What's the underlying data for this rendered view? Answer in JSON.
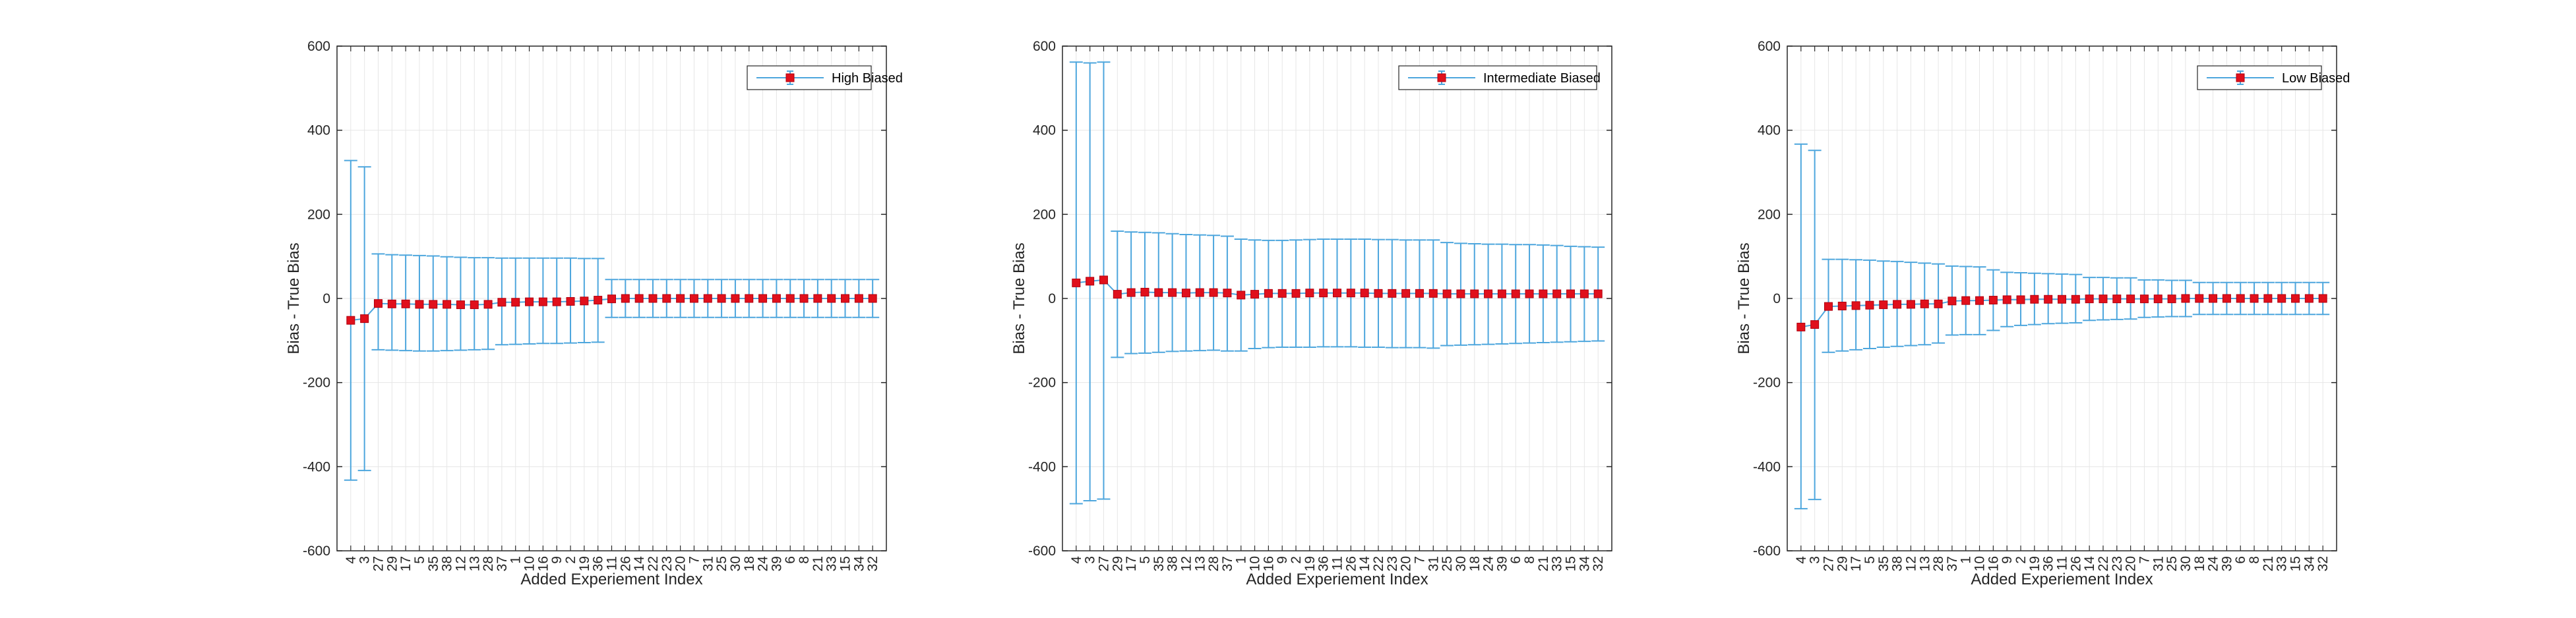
{
  "colors": {
    "error_bar": "#4DA6DD",
    "marker": "#E0101C",
    "marker_edge": "#B0000E",
    "axis": "#262626",
    "grid": "#E6E6E6"
  },
  "chart_data": [
    {
      "type": "errorbar",
      "legend": "High Biased",
      "legend_position": "top-right",
      "xlabel": "Added Experiement Index",
      "ylabel": "Bias - True Bias",
      "ylim": [
        -600,
        600
      ],
      "yticks": [
        -600,
        -400,
        -200,
        0,
        200,
        400,
        600
      ],
      "grid": true,
      "categories": [
        "4",
        "3",
        "27",
        "29",
        "17",
        "5",
        "35",
        "38",
        "12",
        "13",
        "28",
        "37",
        "1",
        "10",
        "16",
        "9",
        "2",
        "19",
        "36",
        "11",
        "26",
        "14",
        "22",
        "23",
        "20",
        "7",
        "31",
        "25",
        "30",
        "18",
        "24",
        "39",
        "6",
        "8",
        "21",
        "33",
        "15",
        "34",
        "32"
      ],
      "values": [
        -52,
        -48,
        -12,
        -13,
        -13,
        -14,
        -14,
        -14,
        -15,
        -15,
        -14,
        -9,
        -9,
        -8,
        -8,
        -8,
        -7,
        -6,
        -4,
        -1,
        0,
        0,
        0,
        0,
        0,
        0,
        0,
        0,
        0,
        0,
        0,
        0,
        0,
        0,
        0,
        0,
        0,
        0,
        0
      ],
      "upper": [
        328,
        313,
        106,
        104,
        103,
        102,
        101,
        99,
        98,
        97,
        97,
        96,
        96,
        96,
        96,
        96,
        96,
        95,
        95,
        45,
        45,
        45,
        45,
        45,
        45,
        45,
        45,
        45,
        45,
        45,
        45,
        45,
        45,
        45,
        45,
        45,
        45,
        45,
        45
      ],
      "lower": [
        -432,
        -409,
        -122,
        -123,
        -124,
        -125,
        -125,
        -124,
        -123,
        -122,
        -121,
        -110,
        -109,
        -108,
        -107,
        -107,
        -106,
        -105,
        -104,
        -45,
        -45,
        -45,
        -45,
        -45,
        -45,
        -45,
        -45,
        -45,
        -45,
        -45,
        -45,
        -45,
        -45,
        -45,
        -45,
        -45,
        -45,
        -45,
        -45
      ]
    },
    {
      "type": "errorbar",
      "legend": "Intermediate Biased",
      "legend_position": "top-right",
      "xlabel": "Added Experiement Index",
      "ylabel": "Bias - True Bias",
      "ylim": [
        -600,
        600
      ],
      "yticks": [
        -600,
        -400,
        -200,
        0,
        200,
        400,
        600
      ],
      "grid": true,
      "categories": [
        "4",
        "3",
        "27",
        "29",
        "17",
        "5",
        "35",
        "38",
        "12",
        "13",
        "28",
        "37",
        "1",
        "10",
        "16",
        "9",
        "2",
        "19",
        "36",
        "11",
        "26",
        "14",
        "22",
        "23",
        "20",
        "7",
        "31",
        "25",
        "30",
        "18",
        "24",
        "39",
        "6",
        "8",
        "21",
        "33",
        "15",
        "34",
        "32"
      ],
      "values": [
        37,
        41,
        44,
        10,
        14,
        15,
        14,
        14,
        13,
        14,
        14,
        13,
        8,
        10,
        12,
        12,
        12,
        13,
        13,
        13,
        13,
        13,
        12,
        12,
        12,
        12,
        12,
        11,
        11,
        11,
        11,
        11,
        11,
        11,
        11,
        11,
        11,
        11,
        11
      ],
      "upper": [
        562,
        560,
        562,
        160,
        158,
        157,
        156,
        154,
        152,
        151,
        150,
        148,
        141,
        139,
        138,
        138,
        139,
        140,
        141,
        141,
        141,
        141,
        140,
        140,
        139,
        139,
        139,
        133,
        131,
        130,
        129,
        129,
        128,
        128,
        127,
        126,
        124,
        123,
        122
      ],
      "lower": [
        -488,
        -481,
        -477,
        -140,
        -131,
        -130,
        -128,
        -126,
        -125,
        -124,
        -123,
        -125,
        -125,
        -119,
        -117,
        -116,
        -116,
        -116,
        -115,
        -115,
        -115,
        -116,
        -116,
        -117,
        -117,
        -117,
        -118,
        -112,
        -111,
        -110,
        -109,
        -108,
        -107,
        -106,
        -105,
        -104,
        -103,
        -102,
        -101
      ]
    },
    {
      "type": "errorbar",
      "legend": "Low Biased",
      "legend_position": "top-right",
      "xlabel": "Added Experiement Index",
      "ylabel": "Bias - True Bias",
      "ylim": [
        -600,
        600
      ],
      "yticks": [
        -600,
        -400,
        -200,
        0,
        200,
        400,
        600
      ],
      "grid": true,
      "categories": [
        "4",
        "3",
        "27",
        "29",
        "17",
        "5",
        "35",
        "38",
        "12",
        "13",
        "28",
        "37",
        "1",
        "10",
        "16",
        "9",
        "2",
        "19",
        "36",
        "11",
        "26",
        "14",
        "22",
        "23",
        "20",
        "7",
        "31",
        "25",
        "30",
        "18",
        "24",
        "39",
        "6",
        "8",
        "21",
        "33",
        "15",
        "34",
        "32"
      ],
      "values": [
        -68,
        -62,
        -19,
        -18,
        -17,
        -16,
        -15,
        -14,
        -14,
        -13,
        -13,
        -6,
        -5,
        -5,
        -4,
        -3,
        -3,
        -2,
        -2,
        -2,
        -2,
        -1,
        -1,
        -1,
        -1,
        -1,
        -1,
        -1,
        0,
        0,
        0,
        0,
        0,
        0,
        0,
        0,
        0,
        0,
        0
      ],
      "upper": [
        367,
        352,
        93,
        93,
        92,
        91,
        89,
        88,
        86,
        84,
        82,
        77,
        76,
        75,
        68,
        62,
        61,
        60,
        59,
        58,
        57,
        50,
        50,
        49,
        49,
        44,
        44,
        43,
        43,
        38,
        38,
        38,
        38,
        38,
        38,
        38,
        38,
        38,
        38
      ],
      "lower": [
        -500,
        -478,
        -128,
        -125,
        -122,
        -119,
        -116,
        -114,
        -112,
        -110,
        -106,
        -87,
        -86,
        -86,
        -76,
        -67,
        -64,
        -62,
        -60,
        -59,
        -58,
        -52,
        -51,
        -50,
        -49,
        -45,
        -44,
        -43,
        -43,
        -38,
        -38,
        -38,
        -38,
        -38,
        -38,
        -38,
        -38,
        -38,
        -38
      ]
    }
  ]
}
